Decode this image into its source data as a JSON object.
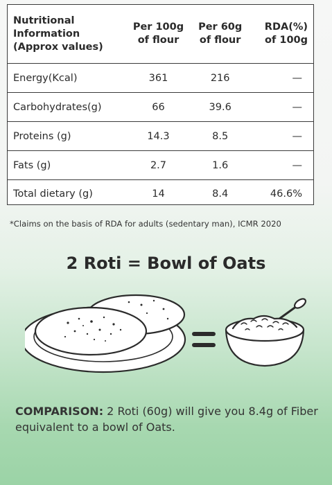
{
  "table": {
    "headers": [
      "Nutritional Information (Approx values)",
      "Per 100g of flour",
      "Per 60g of flour",
      "RDA(%) of 100g"
    ],
    "header_lines": [
      [
        "Nutritional",
        "Information",
        "(Approx values)"
      ],
      [
        "Per 100g",
        "of flour"
      ],
      [
        "Per 60g",
        "of flour"
      ],
      [
        "RDA(%)",
        "of 100g"
      ]
    ],
    "rows": [
      {
        "nutrient": "Energy(Kcal)",
        "per100": "361",
        "per60": "216",
        "rda": "—"
      },
      {
        "nutrient": "Carbohydrates(g)",
        "per100": "66",
        "per60": "39.6",
        "rda": "—"
      },
      {
        "nutrient": "Proteins (g)",
        "per100": "14.3",
        "per60": "8.5",
        "rda": "—"
      },
      {
        "nutrient": "Fats (g)",
        "per100": "2.7",
        "per60": "1.6",
        "rda": "—"
      },
      {
        "nutrient": "Total dietary (g)",
        "per100": "14",
        "per60": "8.4",
        "rda": "46.6%"
      }
    ]
  },
  "footnote": "*Claims on the basis of RDA for adults (sedentary man), ICMR 2020",
  "equation": "2 Roti = Bowl of Oats",
  "illustration": {
    "left_icon": "roti-plate-icon",
    "middle_icon": "equals-icon",
    "right_icon": "oats-bowl-icon",
    "stroke_color": "#2b2b2b"
  },
  "comparison": {
    "label": "COMPARISON:",
    "text": " 2 Roti (60g) will give you 8.4g of Fiber equivalent to a bowl of Oats."
  }
}
